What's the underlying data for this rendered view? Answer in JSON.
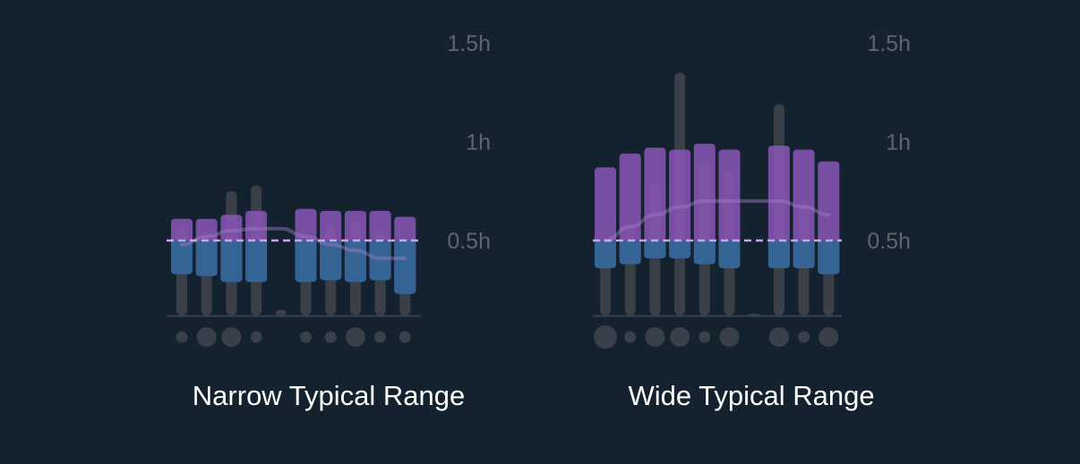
{
  "colors": {
    "background": "#13222e",
    "range_bar": "#8654b4",
    "below_avg": "#2c6792",
    "history_bar": "#3b4048",
    "trend_line": "#a27cc8",
    "average_line": "#c9a4f4",
    "baseline": "#3b4048",
    "dot": "#3a4049",
    "tick_text": "#5e656d",
    "title_text": "#ffffff"
  },
  "chart_data": [
    {
      "type": "bar",
      "title": "Narrow Typical Range",
      "ylim": [
        0.12,
        1.5
      ],
      "yticks": [
        {
          "value": 0.5,
          "label": "0.5h"
        },
        {
          "value": 1.0,
          "label": "1h"
        },
        {
          "value": 1.5,
          "label": "1.5h"
        }
      ],
      "average": 0.5,
      "slots": 10,
      "history": [
        {
          "slot": 0,
          "low": 0.12,
          "high": 0.58
        },
        {
          "slot": 1,
          "low": 0.12,
          "high": 0.55
        },
        {
          "slot": 2,
          "low": 0.12,
          "high": 0.75
        },
        {
          "slot": 3,
          "low": 0.12,
          "high": 0.78
        },
        {
          "slot": 4,
          "low": 0.12,
          "high": 0.15
        },
        {
          "slot": 5,
          "low": 0.12,
          "high": 0.45
        },
        {
          "slot": 6,
          "low": 0.12,
          "high": 0.58
        },
        {
          "slot": 7,
          "low": 0.12,
          "high": 0.6
        },
        {
          "slot": 8,
          "low": 0.12,
          "high": 0.55
        },
        {
          "slot": 9,
          "low": 0.12,
          "high": 0.32
        }
      ],
      "ranges": [
        {
          "slot": 0,
          "low": 0.33,
          "high": 0.61
        },
        {
          "slot": 1,
          "low": 0.32,
          "high": 0.61
        },
        {
          "slot": 2,
          "low": 0.29,
          "high": 0.63
        },
        {
          "slot": 3,
          "low": 0.29,
          "high": 0.65
        },
        {
          "slot": 5,
          "low": 0.29,
          "high": 0.66
        },
        {
          "slot": 6,
          "low": 0.3,
          "high": 0.65
        },
        {
          "slot": 7,
          "low": 0.29,
          "high": 0.65
        },
        {
          "slot": 8,
          "low": 0.3,
          "high": 0.65
        },
        {
          "slot": 9,
          "low": 0.23,
          "high": 0.62
        }
      ],
      "trend": [
        0.48,
        0.52,
        0.55,
        0.56,
        0.56,
        0.52,
        0.48,
        0.45,
        0.41,
        0.41
      ],
      "dots": [
        1,
        2,
        2,
        1,
        1,
        1,
        2,
        1,
        1
      ]
    },
    {
      "type": "bar",
      "title": "Wide Typical Range",
      "ylim": [
        0.12,
        1.5
      ],
      "yticks": [
        {
          "value": 0.5,
          "label": "0.5h"
        },
        {
          "value": 1.0,
          "label": "1h"
        },
        {
          "value": 1.5,
          "label": "1.5h"
        }
      ],
      "average": 0.5,
      "slots": 10,
      "history": [
        {
          "slot": 0,
          "low": 0.12,
          "high": 0.5
        },
        {
          "slot": 1,
          "low": 0.12,
          "high": 0.58
        },
        {
          "slot": 2,
          "low": 0.12,
          "high": 0.8
        },
        {
          "slot": 3,
          "low": 0.12,
          "high": 1.35
        },
        {
          "slot": 4,
          "low": 0.12,
          "high": 0.9
        },
        {
          "slot": 5,
          "low": 0.12,
          "high": 0.85
        },
        {
          "slot": 6,
          "low": 0.12,
          "high": 0.13
        },
        {
          "slot": 7,
          "low": 0.12,
          "high": 1.19
        },
        {
          "slot": 8,
          "low": 0.12,
          "high": 0.7
        },
        {
          "slot": 9,
          "low": 0.12,
          "high": 0.5
        }
      ],
      "ranges": [
        {
          "slot": 0,
          "low": 0.36,
          "high": 0.87
        },
        {
          "slot": 1,
          "low": 0.38,
          "high": 0.94
        },
        {
          "slot": 2,
          "low": 0.41,
          "high": 0.97
        },
        {
          "slot": 3,
          "low": 0.41,
          "high": 0.96
        },
        {
          "slot": 4,
          "low": 0.38,
          "high": 0.99
        },
        {
          "slot": 5,
          "low": 0.36,
          "high": 0.96
        },
        {
          "slot": 7,
          "low": 0.36,
          "high": 0.98
        },
        {
          "slot": 8,
          "low": 0.36,
          "high": 0.96
        },
        {
          "slot": 9,
          "low": 0.33,
          "high": 0.9
        }
      ],
      "trend": [
        0.5,
        0.57,
        0.63,
        0.67,
        0.7,
        0.7,
        0.7,
        0.7,
        0.67,
        0.63
      ],
      "dots": [
        2,
        1,
        2,
        2,
        1,
        2,
        2,
        1,
        2
      ]
    }
  ]
}
